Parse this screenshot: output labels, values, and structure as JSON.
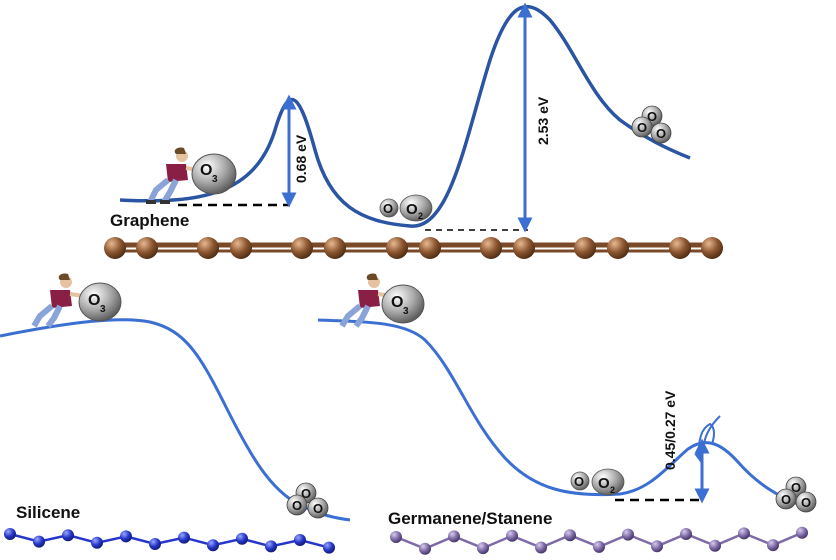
{
  "panels": {
    "graphene": {
      "label": "Graphene",
      "barrier1": "0.68 eV",
      "barrier2": "2.53 eV",
      "reactant": "O3",
      "intermediate": "O O2",
      "product": "O O O"
    },
    "silicene": {
      "label": "Silicene",
      "reactant": "O3",
      "product": "O O O"
    },
    "germanene_stanene": {
      "label": "Germanene/Stanene",
      "barrier": "0.45/0.27 eV",
      "reactant": "O3",
      "intermediate": "O O2",
      "product": "O O O"
    }
  },
  "molecules": {
    "atom": "O",
    "ozone_sub": "3",
    "dioxygen_sub": "2"
  },
  "colors": {
    "graphene_curve": "#2b55a3",
    "lower_curve": "#3b6fd1",
    "arrow": "#3b6fd1",
    "graphene_atom": "#8a5530",
    "graphene_bond": "#7a4a28",
    "silicene_atom": "#2636c8",
    "germanene_atom": "#7e6aa6",
    "oxygen": "#9a9a9a"
  }
}
